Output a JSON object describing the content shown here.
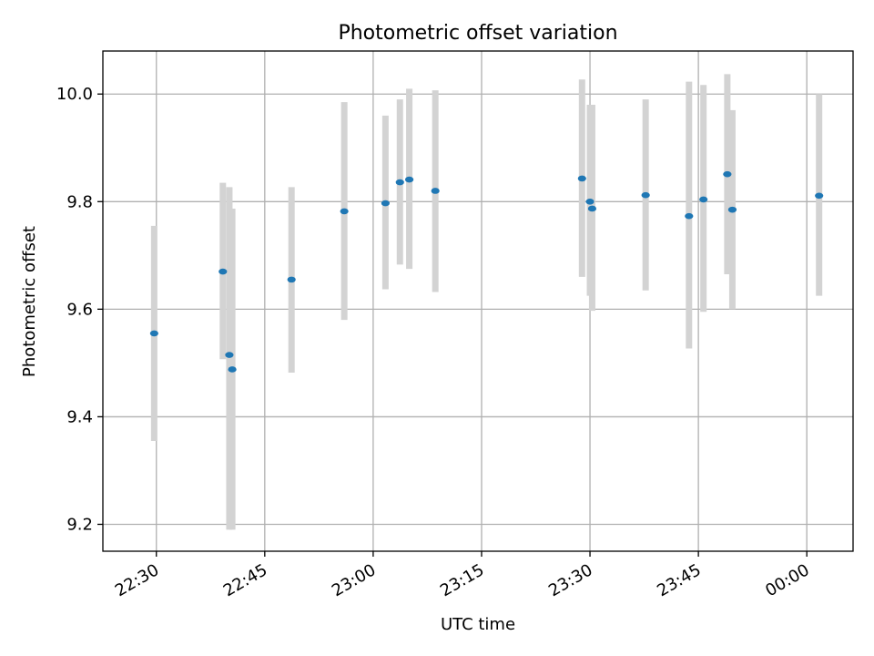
{
  "chart_data": {
    "type": "scatter",
    "title": "Photometric offset variation",
    "xlabel": "UTC time",
    "ylabel": "Photometric offset",
    "x_ticks": [
      "22:30",
      "22:45",
      "23:00",
      "23:15",
      "23:30",
      "23:45",
      "00:00"
    ],
    "y_ticks": [
      "9.2",
      "9.4",
      "9.6",
      "9.8",
      "10.0"
    ],
    "xlim": [
      "22:22.6",
      "00:06.4"
    ],
    "ylim": [
      9.15,
      10.08
    ],
    "grid": true,
    "series": [
      {
        "values": [
          {
            "x": "22:29.7",
            "y": 9.555,
            "ylow": 9.355,
            "yhigh": 9.755
          },
          {
            "x": "22:39.2",
            "y": 9.67,
            "ylow": 9.507,
            "yhigh": 9.835
          },
          {
            "x": "22:40.1",
            "y": 9.515,
            "ylow": 9.19,
            "yhigh": 9.827
          },
          {
            "x": "22:40.5",
            "y": 9.488,
            "ylow": 9.19,
            "yhigh": 9.787
          },
          {
            "x": "22:48.7",
            "y": 9.655,
            "ylow": 9.482,
            "yhigh": 9.827
          },
          {
            "x": "22:56.0",
            "y": 9.782,
            "ylow": 9.58,
            "yhigh": 9.985
          },
          {
            "x": "23:01.7",
            "y": 9.797,
            "ylow": 9.637,
            "yhigh": 9.96
          },
          {
            "x": "23:03.7",
            "y": 9.836,
            "ylow": 9.683,
            "yhigh": 9.99
          },
          {
            "x": "23:05.0",
            "y": 9.841,
            "ylow": 9.675,
            "yhigh": 10.01
          },
          {
            "x": "23:08.6",
            "y": 9.82,
            "ylow": 9.632,
            "yhigh": 10.007
          },
          {
            "x": "23:28.9",
            "y": 9.843,
            "ylow": 9.66,
            "yhigh": 10.027
          },
          {
            "x": "23:30.0",
            "y": 9.8,
            "ylow": 9.625,
            "yhigh": 9.98
          },
          {
            "x": "23:30.3",
            "y": 9.787,
            "ylow": 9.597,
            "yhigh": 9.98
          },
          {
            "x": "23:37.7",
            "y": 9.812,
            "ylow": 9.635,
            "yhigh": 9.99
          },
          {
            "x": "23:43.7",
            "y": 9.773,
            "ylow": 9.527,
            "yhigh": 10.023
          },
          {
            "x": "23:45.7",
            "y": 9.804,
            "ylow": 9.595,
            "yhigh": 10.017
          },
          {
            "x": "23:49.0",
            "y": 9.851,
            "ylow": 9.665,
            "yhigh": 10.037
          },
          {
            "x": "23:49.7",
            "y": 9.785,
            "ylow": 9.6,
            "yhigh": 9.97
          },
          {
            "x": "00:01.7",
            "y": 9.811,
            "ylow": 9.625,
            "yhigh": 10.0
          }
        ]
      }
    ],
    "colors": {
      "point": "#1f77b4",
      "errorbar": "#d3d3d3",
      "grid": "#b0b0b0",
      "axes": "#000000"
    }
  }
}
